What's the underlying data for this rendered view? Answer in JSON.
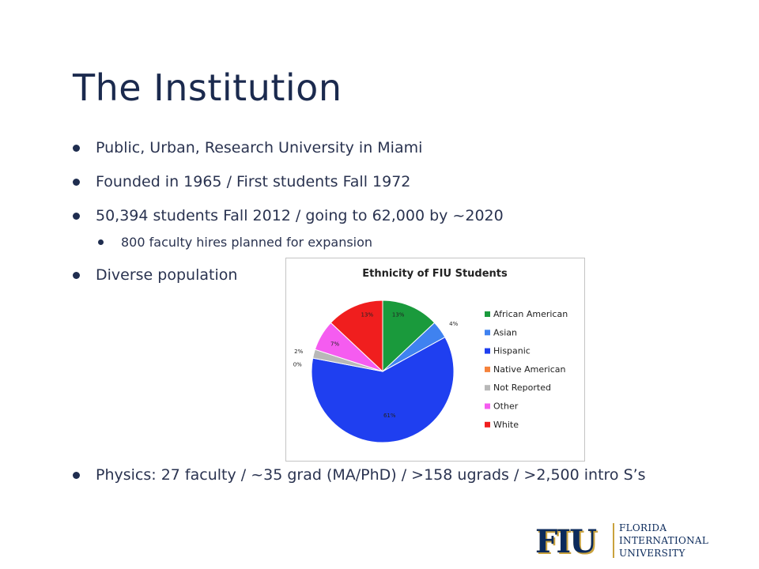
{
  "slide": {
    "title": "The Institution",
    "bullets": [
      "Public, Urban, Research University in Miami",
      "Founded in 1965 / First students Fall 1972",
      "50,394 students Fall 2012 / going to 62,000 by ~2020",
      "800 faculty hires planned for expansion",
      "Diverse population",
      "Physics: 27 faculty / ~35 grad (MA/PhD) / >158 ugrads / >2,500 intro S’s"
    ]
  },
  "logo": {
    "mark": "FIU",
    "line1": "FLORIDA",
    "line2": "INTERNATIONAL",
    "line3": "UNIVERSITY"
  },
  "chart_data": {
    "type": "pie",
    "title": "Ethnicity of FIU Students",
    "categories": [
      "African American",
      "Asian",
      "Hispanic",
      "Native American",
      "Not Reported",
      "Other",
      "White"
    ],
    "values": [
      13,
      4,
      61,
      0,
      2,
      7,
      13
    ],
    "labels": [
      "13%",
      "4%",
      "61%",
      "0%",
      "2%",
      "7%",
      "13%"
    ],
    "colors": [
      "#1a9a3c",
      "#3f82f0",
      "#1f3ff0",
      "#f5823b",
      "#b8b8b8",
      "#f55cf0",
      "#f01e1e"
    ],
    "legend": "right"
  }
}
